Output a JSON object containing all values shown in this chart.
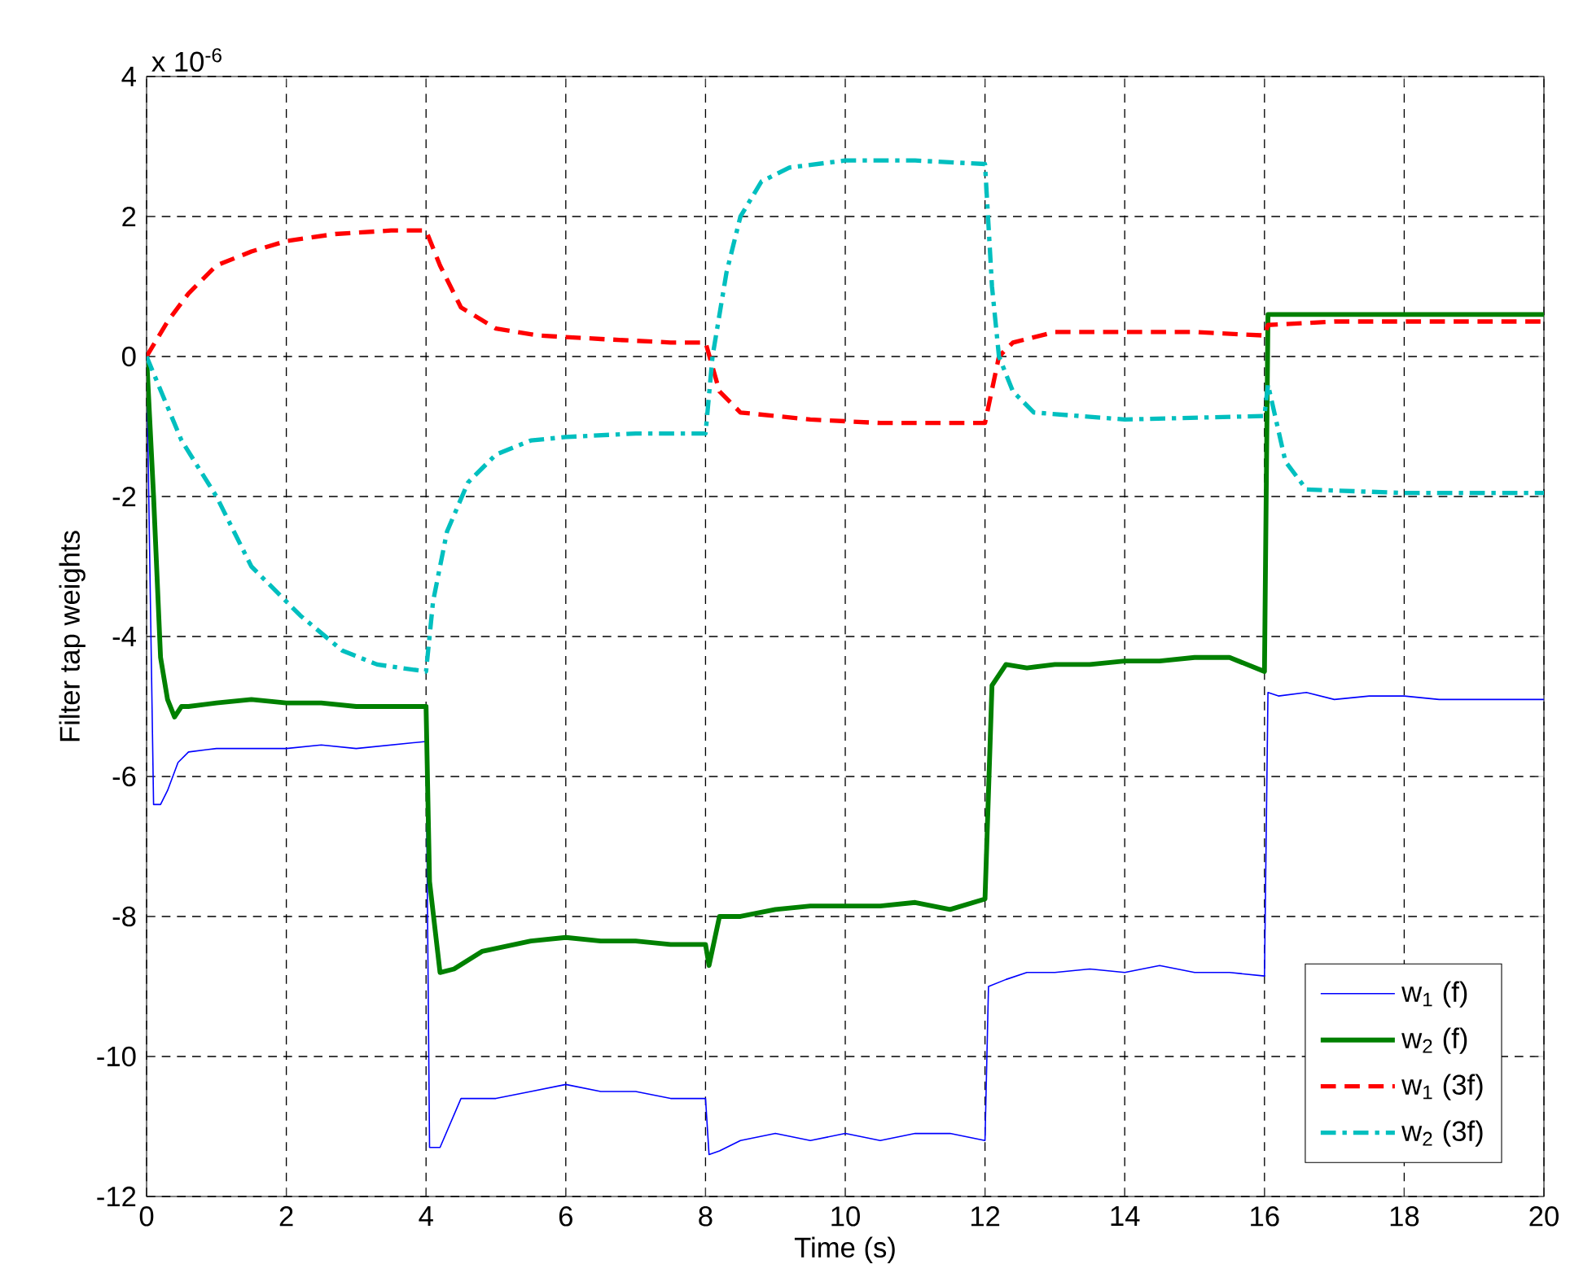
{
  "chart_data": {
    "type": "line",
    "xlabel": "Time (s)",
    "ylabel": "Filter tap weights",
    "annotations": [
      "x 10$^{-6}$"
    ],
    "xlim": [
      0,
      20
    ],
    "xticks": [
      0,
      2,
      4,
      6,
      8,
      10,
      12,
      14,
      16,
      18,
      20
    ],
    "ylim": [
      -12,
      4
    ],
    "yticks": [
      -12,
      -10,
      -8,
      -6,
      -4,
      -2,
      0,
      2,
      4
    ],
    "grid": true,
    "legend": "bottom right",
    "marker": "none",
    "series": [
      {
        "name": "w$_{1}$ (f)",
        "color": "#0000ff",
        "line_style": "solid",
        "x": [
          0,
          0.1,
          0.2,
          0.3,
          0.45,
          0.6,
          1.0,
          1.5,
          2.0,
          2.5,
          3.0,
          3.5,
          4.0,
          4.05,
          4.2,
          4.5,
          5.0,
          5.5,
          6.0,
          6.5,
          7.0,
          7.5,
          8.0,
          8.05,
          8.2,
          8.5,
          9.0,
          9.5,
          10.0,
          10.5,
          11.0,
          11.5,
          12.0,
          12.05,
          12.3,
          12.6,
          13.0,
          13.5,
          14.0,
          14.5,
          15.0,
          15.5,
          16.0,
          16.05,
          16.2,
          16.6,
          17.0,
          17.5,
          18.0,
          18.5,
          19.0,
          19.5,
          20.0
        ],
        "values": [
          0,
          -6.4,
          -6.4,
          -6.2,
          -5.8,
          -5.65,
          -5.6,
          -5.6,
          -5.6,
          -5.55,
          -5.6,
          -5.55,
          -5.5,
          -11.3,
          -11.3,
          -10.6,
          -10.6,
          -10.5,
          -10.4,
          -10.5,
          -10.5,
          -10.6,
          -10.6,
          -11.4,
          -11.35,
          -11.2,
          -11.1,
          -11.2,
          -11.1,
          -11.2,
          -11.1,
          -11.1,
          -11.2,
          -9.0,
          -8.9,
          -8.8,
          -8.8,
          -8.75,
          -8.8,
          -8.7,
          -8.8,
          -8.8,
          -8.85,
          -4.8,
          -4.85,
          -4.8,
          -4.9,
          -4.85,
          -4.85,
          -4.9,
          -4.9,
          -4.9,
          -4.9
        ]
      },
      {
        "name": "w$_{2}$ (f)",
        "color": "#008000",
        "line_style": "solid",
        "x": [
          0,
          0.1,
          0.2,
          0.3,
          0.4,
          0.5,
          0.6,
          1.0,
          1.5,
          2.0,
          2.5,
          3.0,
          3.5,
          4.0,
          4.05,
          4.2,
          4.4,
          4.8,
          5.5,
          6.0,
          6.5,
          7.0,
          7.5,
          8.0,
          8.05,
          8.2,
          8.5,
          9.0,
          9.5,
          10.0,
          10.5,
          11.0,
          11.5,
          12.0,
          12.1,
          12.3,
          12.6,
          13.0,
          13.5,
          14.0,
          14.5,
          15.0,
          15.5,
          16.0,
          16.05,
          16.5,
          17.0,
          17.5,
          18.0,
          18.5,
          19.0,
          19.5,
          20.0
        ],
        "values": [
          0,
          -2.0,
          -4.3,
          -4.9,
          -5.15,
          -5.0,
          -5.0,
          -4.95,
          -4.9,
          -4.95,
          -4.95,
          -5.0,
          -5.0,
          -5.0,
          -7.5,
          -8.8,
          -8.75,
          -8.5,
          -8.35,
          -8.3,
          -8.35,
          -8.35,
          -8.4,
          -8.4,
          -8.7,
          -8.0,
          -8.0,
          -7.9,
          -7.85,
          -7.85,
          -7.85,
          -7.8,
          -7.9,
          -7.75,
          -4.7,
          -4.4,
          -4.45,
          -4.4,
          -4.4,
          -4.35,
          -4.35,
          -4.3,
          -4.3,
          -4.5,
          0.6,
          0.6,
          0.6,
          0.6,
          0.6,
          0.6,
          0.6,
          0.6,
          0.6
        ]
      },
      {
        "name": "w$_{1}$ (3f)",
        "color": "#ff0000",
        "line_style": "dashed",
        "x": [
          0,
          0.3,
          0.6,
          1.0,
          1.5,
          2.0,
          2.7,
          3.5,
          4.0,
          4.2,
          4.5,
          5.0,
          5.6,
          6.5,
          7.5,
          8.0,
          8.2,
          8.5,
          9.5,
          10.5,
          12.0,
          12.2,
          12.4,
          13.0,
          14.0,
          15.0,
          16.0,
          16.05,
          17.0,
          18.0,
          19.0,
          20.0
        ],
        "values": [
          0,
          0.5,
          0.9,
          1.3,
          1.5,
          1.65,
          1.75,
          1.8,
          1.8,
          1.3,
          0.7,
          0.4,
          0.3,
          0.25,
          0.2,
          0.2,
          -0.5,
          -0.8,
          -0.9,
          -0.95,
          -0.95,
          0.0,
          0.2,
          0.35,
          0.35,
          0.35,
          0.3,
          0.45,
          0.5,
          0.5,
          0.5,
          0.5
        ]
      },
      {
        "name": "w$_{2}$ (3f)",
        "color": "#00bfbf",
        "line_style": "dashdot",
        "x": [
          0,
          0.5,
          1.0,
          1.5,
          2.2,
          2.8,
          3.3,
          4.0,
          4.1,
          4.3,
          4.6,
          5.0,
          5.5,
          6.0,
          7.0,
          8.0,
          8.1,
          8.3,
          8.5,
          8.8,
          9.2,
          10.0,
          11.0,
          12.0,
          12.1,
          12.2,
          12.4,
          12.7,
          14.0,
          16.0,
          16.05,
          16.3,
          16.6,
          18.0,
          20.0
        ],
        "values": [
          0,
          -1.2,
          -2.0,
          -3.0,
          -3.7,
          -4.2,
          -4.4,
          -4.5,
          -3.5,
          -2.5,
          -1.8,
          -1.4,
          -1.2,
          -1.15,
          -1.1,
          -1.1,
          0.0,
          1.2,
          2.0,
          2.5,
          2.7,
          2.8,
          2.8,
          2.75,
          1.0,
          0.0,
          -0.5,
          -0.8,
          -0.9,
          -0.85,
          -0.4,
          -1.5,
          -1.9,
          -1.95,
          -1.95
        ]
      }
    ]
  }
}
